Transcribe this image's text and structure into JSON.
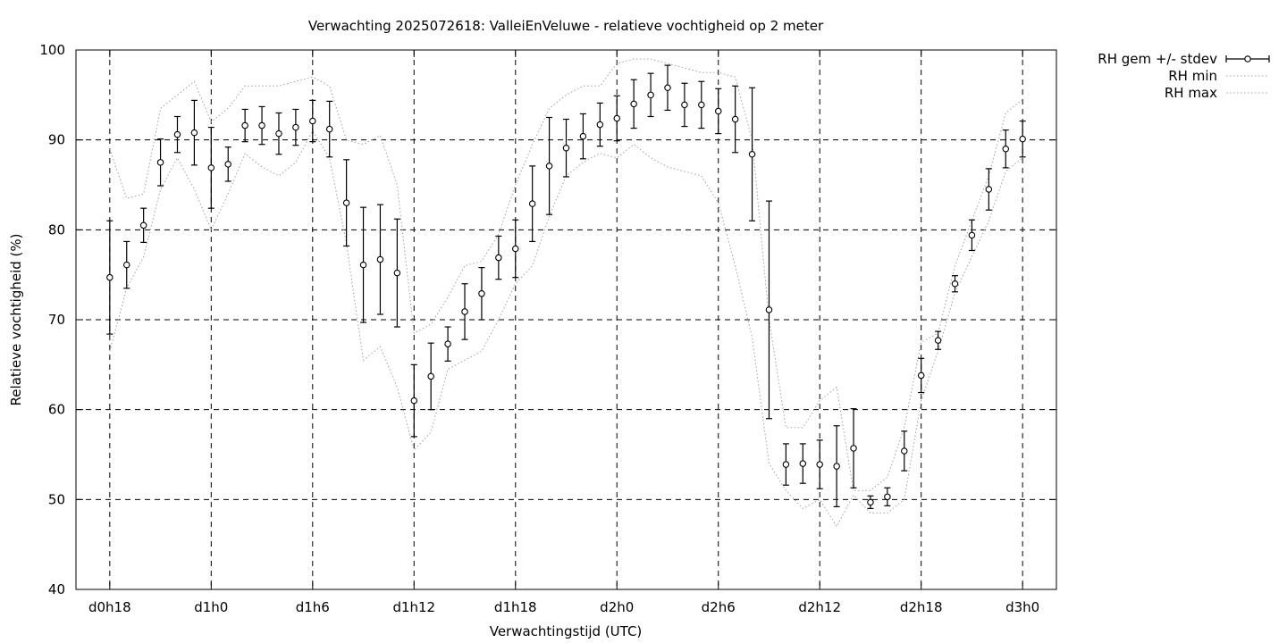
{
  "chart_data": {
    "type": "line",
    "title": "Verwachting 2025072618: ValleiEnVeluwe - relatieve vochtigheid op 2 meter",
    "xlabel": "Verwachtingstijd (UTC)",
    "ylabel": "Relatieve vochtigheid (%)",
    "ylim": [
      40,
      100
    ],
    "yticks": [
      40,
      50,
      60,
      70,
      80,
      90,
      100
    ],
    "xlim": [
      -2,
      56
    ],
    "xticks": [
      {
        "x": 0,
        "label": "d0h18"
      },
      {
        "x": 6,
        "label": "d1h0"
      },
      {
        "x": 12,
        "label": "d1h6"
      },
      {
        "x": 18,
        "label": "d1h12"
      },
      {
        "x": 24,
        "label": "d1h18"
      },
      {
        "x": 30,
        "label": "d2h0"
      },
      {
        "x": 36,
        "label": "d2h6"
      },
      {
        "x": 42,
        "label": "d2h12"
      },
      {
        "x": 48,
        "label": "d2h18"
      },
      {
        "x": 54,
        "label": "d3h0"
      }
    ],
    "grid": true,
    "legend_position": "outside-top-right",
    "series": [
      {
        "name": "RH gem +/- stdev",
        "style": "errorbars",
        "color": "#000000",
        "x": [
          0,
          1,
          2,
          3,
          4,
          5,
          6,
          7,
          8,
          9,
          10,
          11,
          12,
          13,
          14,
          15,
          16,
          17,
          18,
          19,
          20,
          21,
          22,
          23,
          24,
          25,
          26,
          27,
          28,
          29,
          30,
          31,
          32,
          33,
          34,
          35,
          36,
          37,
          38,
          39,
          40,
          41,
          42,
          43,
          44,
          45,
          46,
          47,
          48,
          49,
          50,
          51,
          52,
          53,
          54
        ],
        "mean": [
          74.7,
          76.1,
          80.5,
          87.5,
          90.6,
          90.8,
          86.9,
          87.3,
          91.6,
          91.6,
          90.7,
          91.4,
          92.1,
          91.2,
          83.0,
          76.1,
          76.7,
          75.2,
          61.0,
          63.7,
          67.3,
          70.9,
          72.9,
          76.9,
          77.9,
          82.9,
          87.1,
          89.1,
          90.4,
          91.7,
          92.4,
          94.0,
          95.0,
          95.8,
          93.9,
          93.9,
          93.2,
          92.3,
          88.4,
          71.1,
          53.9,
          54.0,
          53.9,
          53.7,
          55.7,
          49.7,
          50.3,
          55.4,
          63.8,
          67.7,
          74.0,
          79.4,
          84.5,
          89.0,
          90.1
        ],
        "stdev": [
          6.3,
          2.6,
          1.9,
          2.6,
          2.0,
          3.6,
          4.5,
          1.9,
          1.8,
          2.1,
          2.3,
          2.0,
          2.3,
          3.1,
          4.8,
          6.4,
          6.1,
          6.0,
          4.0,
          3.7,
          1.9,
          3.1,
          2.9,
          2.4,
          3.2,
          4.2,
          5.4,
          3.2,
          2.5,
          2.4,
          2.5,
          2.7,
          2.4,
          2.5,
          2.4,
          2.6,
          2.5,
          3.7,
          7.4,
          12.1,
          2.3,
          2.2,
          2.7,
          4.5,
          4.4,
          0.7,
          1.0,
          2.2,
          1.9,
          1.0,
          0.9,
          1.7,
          2.3,
          2.1,
          2.0
        ]
      },
      {
        "name": "RH min",
        "style": "dotted",
        "color": "#a0a0a0",
        "x": [
          0,
          1,
          2,
          3,
          4,
          5,
          6,
          7,
          8,
          9,
          10,
          11,
          12,
          13,
          14,
          15,
          16,
          17,
          18,
          19,
          20,
          21,
          22,
          23,
          24,
          25,
          26,
          27,
          28,
          29,
          30,
          31,
          32,
          33,
          34,
          35,
          36,
          37,
          38,
          39,
          40,
          41,
          42,
          43,
          44,
          45,
          46,
          47,
          48,
          49,
          50,
          51,
          52,
          53,
          54
        ],
        "values": [
          66.5,
          73.5,
          77.0,
          84.5,
          88.0,
          84.5,
          80.0,
          84.0,
          88.5,
          87.0,
          86.0,
          87.5,
          91.0,
          88.0,
          78.5,
          65.5,
          67.0,
          62.5,
          55.5,
          57.5,
          64.5,
          65.5,
          66.5,
          70.0,
          74.0,
          76.0,
          81.5,
          86.0,
          87.5,
          88.5,
          88.0,
          89.5,
          88.0,
          87.0,
          86.5,
          86.0,
          83.0,
          76.0,
          68.0,
          54.0,
          51.0,
          49.0,
          50.0,
          47.0,
          50.5,
          48.5,
          48.5,
          50.0,
          61.0,
          66.5,
          73.0,
          77.0,
          81.0,
          86.5,
          88.0
        ]
      },
      {
        "name": "RH max",
        "style": "dotted",
        "color": "#a0a0a0",
        "x": [
          0,
          1,
          2,
          3,
          4,
          5,
          6,
          7,
          8,
          9,
          10,
          11,
          12,
          13,
          14,
          15,
          16,
          17,
          18,
          19,
          20,
          21,
          22,
          23,
          24,
          25,
          26,
          27,
          28,
          29,
          30,
          31,
          32,
          33,
          34,
          35,
          36,
          37,
          38,
          39,
          40,
          41,
          42,
          43,
          44,
          45,
          46,
          47,
          48,
          49,
          50,
          51,
          52,
          53,
          54
        ],
        "values": [
          89.0,
          83.5,
          84.0,
          93.5,
          95.0,
          96.5,
          92.0,
          93.5,
          96.0,
          96.0,
          96.0,
          96.5,
          97.0,
          96.0,
          90.0,
          89.5,
          90.5,
          85.0,
          68.5,
          69.5,
          72.5,
          76.0,
          76.5,
          79.5,
          85.0,
          89.5,
          93.5,
          95.0,
          96.0,
          96.0,
          98.5,
          99.0,
          99.0,
          98.5,
          98.0,
          97.5,
          97.5,
          97.0,
          90.0,
          70.0,
          58.0,
          58.0,
          61.0,
          62.5,
          51.0,
          51.0,
          52.5,
          58.0,
          67.5,
          68.5,
          76.0,
          81.0,
          86.0,
          93.0,
          94.5
        ]
      }
    ]
  }
}
